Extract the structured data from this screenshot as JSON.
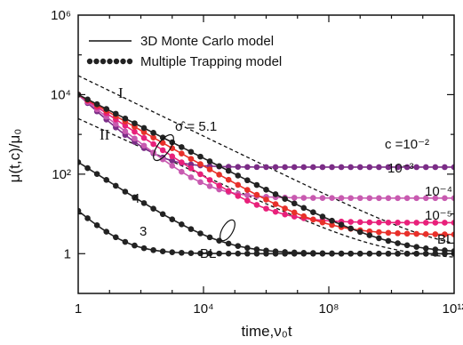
{
  "chart_data": {
    "type": "line",
    "x_scale": "log",
    "y_scale": "log",
    "xlim": [
      1,
      1000000000000.0
    ],
    "ylim": [
      0.1,
      1000000.0
    ],
    "xlabel": "time,ν₀t",
    "ylabel": "μ(t,c)/μ₀",
    "x_ticks": [
      {
        "value": 1,
        "label": "1"
      },
      {
        "value": 10000,
        "label": "10⁴"
      },
      {
        "value": 100000000,
        "label": "10⁸"
      },
      {
        "value": 1000000000000,
        "label": "10¹²"
      }
    ],
    "y_ticks": [
      {
        "value": 1,
        "label": "1"
      },
      {
        "value": 100,
        "label": "10²"
      },
      {
        "value": 10000,
        "label": "10⁴"
      },
      {
        "value": 1000000,
        "label": "10⁶"
      }
    ],
    "legend": {
      "position": "top-left",
      "items": [
        {
          "label": "3D Monte Carlo model",
          "style": "solid-line"
        },
        {
          "label": "Multiple Trapping model",
          "style": "dots"
        }
      ]
    },
    "annotations": {
      "curve_I": "I",
      "curve_II": "II",
      "sigma": "σ̂ = 5.1",
      "c_1e-2": "c =10⁻²",
      "c_1e-3": "10⁻³",
      "c_1e-4": "10⁻⁴",
      "c_1e-5": "10⁻⁵",
      "bl_right": "BL",
      "bl_center": "BL",
      "label_4": "4",
      "label_3": "3"
    },
    "series": [
      {
        "name": "c =10⁻²",
        "color": "#7b2d87",
        "start": 10000,
        "plateau": 150,
        "log_decay": 0.72
      },
      {
        "name": "10⁻³",
        "color": "#c85ab0",
        "start": 10000,
        "plateau": 25,
        "log_decay": 0.62
      },
      {
        "name": "10⁻⁴",
        "color": "#e8207a",
        "start": 10000,
        "plateau": 6,
        "log_decay": 0.52
      },
      {
        "name": "10⁻⁵",
        "color": "#e8302a",
        "start": 10000,
        "plateau": 3,
        "log_decay": 0.45
      },
      {
        "name": "BL",
        "color": "#222222",
        "start": 10000,
        "plateau": 1,
        "log_decay": 0.4
      },
      {
        "name": "4",
        "color": "#222222",
        "start": 200,
        "plateau": 1,
        "log_decay": 0.5
      },
      {
        "name": "3",
        "color": "#222222",
        "start": 12,
        "plateau": 1,
        "log_decay": 0.7
      }
    ],
    "dashed_bounds": [
      {
        "name": "I",
        "start": 30000,
        "end": 1,
        "log_decay": 0.38
      },
      {
        "name": "II",
        "start": 2500,
        "end": 0.7,
        "log_decay": 0.36
      }
    ]
  }
}
